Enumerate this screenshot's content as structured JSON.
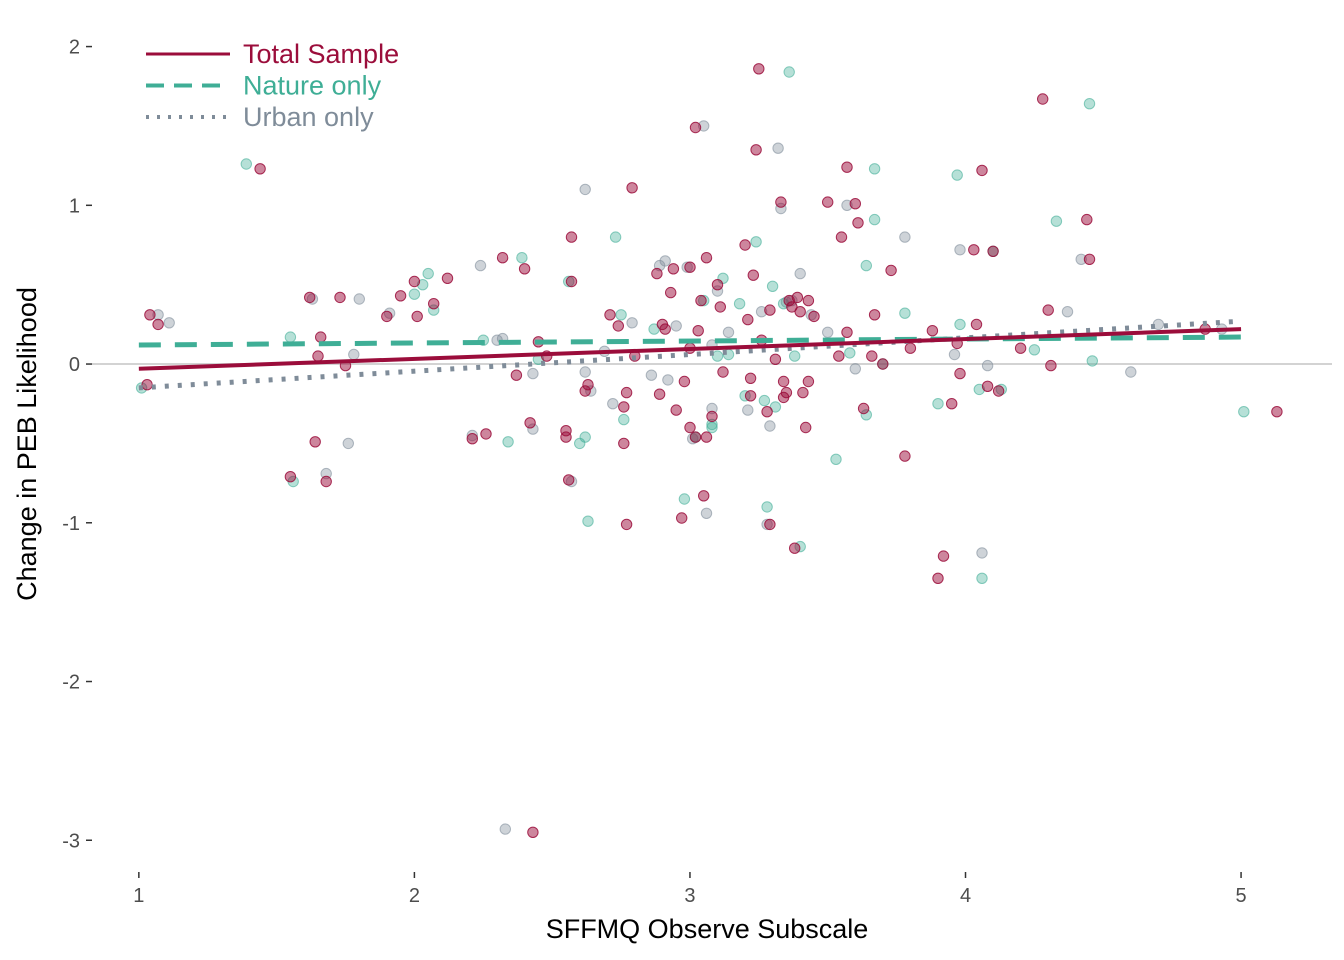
{
  "chart_data": {
    "type": "scatter",
    "title": "",
    "xlabel": "SFFMQ Observe Subscale",
    "ylabel": "Change in PEB Likelihood",
    "xlim": [
      0.83,
      5.33
    ],
    "ylim": [
      -3.2,
      2.18
    ],
    "xticks": [
      1,
      2,
      3,
      4,
      5
    ],
    "yticks": [
      -3,
      -2,
      -1,
      0,
      1,
      2
    ],
    "reference_line_y": 0,
    "grid": false,
    "legend_position": "top-left",
    "colors": {
      "total": "#9b0d3b",
      "nature": "#3fae96",
      "urban": "#7f8c99",
      "reference": "#d3d3d3",
      "axis_text": "#4d4d4d"
    },
    "series": [
      {
        "name": "Total Sample",
        "line_style": "solid",
        "color": "#9b0d3b",
        "fit": [
          [
            1,
            -0.03
          ],
          [
            5,
            0.22
          ]
        ],
        "points": [
          [
            1.03,
            -0.13
          ],
          [
            1.04,
            0.31
          ],
          [
            1.07,
            0.25
          ],
          [
            1.44,
            1.23
          ],
          [
            1.62,
            0.42
          ],
          [
            1.64,
            -0.49
          ],
          [
            1.65,
            0.05
          ],
          [
            1.66,
            0.17
          ],
          [
            1.55,
            -0.71
          ],
          [
            1.68,
            -0.74
          ],
          [
            1.73,
            0.42
          ],
          [
            1.75,
            -0.01
          ],
          [
            1.9,
            0.3
          ],
          [
            1.95,
            0.43
          ],
          [
            2.0,
            0.52
          ],
          [
            2.01,
            0.3
          ],
          [
            2.07,
            0.38
          ],
          [
            2.12,
            0.54
          ],
          [
            2.21,
            -0.47
          ],
          [
            2.26,
            -0.44
          ],
          [
            2.32,
            0.67
          ],
          [
            2.37,
            -0.07
          ],
          [
            2.4,
            0.6
          ],
          [
            2.42,
            -0.37
          ],
          [
            2.43,
            -2.95
          ],
          [
            2.45,
            0.14
          ],
          [
            2.55,
            -0.42
          ],
          [
            2.55,
            -0.46
          ],
          [
            2.56,
            -0.73
          ],
          [
            2.57,
            0.8
          ],
          [
            2.57,
            0.52
          ],
          [
            2.62,
            -0.17
          ],
          [
            2.63,
            -0.13
          ],
          [
            2.71,
            0.31
          ],
          [
            2.74,
            0.24
          ],
          [
            2.76,
            -0.5
          ],
          [
            2.76,
            -0.27
          ],
          [
            2.77,
            -1.01
          ],
          [
            2.77,
            -0.18
          ],
          [
            2.79,
            1.11
          ],
          [
            2.8,
            0.05
          ],
          [
            2.88,
            0.57
          ],
          [
            2.89,
            -0.19
          ],
          [
            2.9,
            0.25
          ],
          [
            2.91,
            0.22
          ],
          [
            2.93,
            0.45
          ],
          [
            2.94,
            0.6
          ],
          [
            2.95,
            -0.29
          ],
          [
            2.97,
            -0.97
          ],
          [
            2.98,
            -0.11
          ],
          [
            3.0,
            0.61
          ],
          [
            3.0,
            -0.4
          ],
          [
            3.02,
            1.49
          ],
          [
            3.02,
            -0.46
          ],
          [
            3.03,
            0.21
          ],
          [
            3.04,
            0.4
          ],
          [
            3.05,
            -0.83
          ],
          [
            3.06,
            0.67
          ],
          [
            3.06,
            -0.46
          ],
          [
            3.08,
            -0.33
          ],
          [
            3.1,
            0.5
          ],
          [
            3.11,
            0.36
          ],
          [
            3.12,
            -0.05
          ],
          [
            3.2,
            0.75
          ],
          [
            3.21,
            0.28
          ],
          [
            3.22,
            -0.09
          ],
          [
            3.22,
            -0.2
          ],
          [
            3.23,
            0.56
          ],
          [
            3.24,
            1.35
          ],
          [
            3.25,
            1.86
          ],
          [
            3.26,
            0.15
          ],
          [
            3.28,
            -0.3
          ],
          [
            3.29,
            -1.01
          ],
          [
            3.29,
            0.34
          ],
          [
            3.31,
            0.03
          ],
          [
            3.33,
            1.02
          ],
          [
            3.34,
            -0.11
          ],
          [
            3.34,
            -0.21
          ],
          [
            3.35,
            -0.18
          ],
          [
            3.36,
            0.4
          ],
          [
            3.37,
            0.36
          ],
          [
            3.38,
            -1.16
          ],
          [
            3.39,
            0.42
          ],
          [
            3.4,
            0.33
          ],
          [
            3.41,
            -0.18
          ],
          [
            3.42,
            -0.4
          ],
          [
            3.43,
            0.4
          ],
          [
            3.43,
            -0.11
          ],
          [
            3.45,
            0.3
          ],
          [
            3.5,
            1.02
          ],
          [
            3.54,
            0.05
          ],
          [
            3.55,
            0.8
          ],
          [
            3.57,
            0.2
          ],
          [
            3.57,
            1.24
          ],
          [
            3.6,
            1.01
          ],
          [
            3.61,
            0.89
          ],
          [
            3.63,
            -0.28
          ],
          [
            3.66,
            0.05
          ],
          [
            3.67,
            0.31
          ],
          [
            3.7,
            0.0
          ],
          [
            3.73,
            0.59
          ],
          [
            3.78,
            -0.58
          ],
          [
            3.88,
            0.21
          ],
          [
            3.9,
            -1.35
          ],
          [
            3.92,
            -1.21
          ],
          [
            3.95,
            -0.25
          ],
          [
            3.97,
            0.13
          ],
          [
            3.98,
            -0.06
          ],
          [
            4.03,
            0.72
          ],
          [
            4.04,
            0.25
          ],
          [
            4.06,
            1.22
          ],
          [
            4.08,
            -0.14
          ],
          [
            4.1,
            0.71
          ],
          [
            4.12,
            -0.17
          ],
          [
            4.28,
            1.67
          ],
          [
            4.3,
            0.34
          ],
          [
            4.31,
            -0.01
          ],
          [
            4.44,
            0.91
          ],
          [
            4.45,
            0.66
          ],
          [
            4.87,
            0.22
          ],
          [
            5.13,
            -0.3
          ],
          [
            3.0,
            0.1
          ],
          [
            2.48,
            0.05
          ],
          [
            3.8,
            0.1
          ],
          [
            4.2,
            0.1
          ]
        ]
      },
      {
        "name": "Nature only",
        "line_style": "dashed",
        "color": "#3fae96",
        "fit": [
          [
            1,
            0.12
          ],
          [
            5,
            0.17
          ]
        ],
        "points": [
          [
            1.01,
            -0.15
          ],
          [
            1.39,
            1.26
          ],
          [
            1.55,
            0.17
          ],
          [
            1.56,
            -0.74
          ],
          [
            2.0,
            0.44
          ],
          [
            2.03,
            0.5
          ],
          [
            2.05,
            0.57
          ],
          [
            2.07,
            0.34
          ],
          [
            2.25,
            0.15
          ],
          [
            2.34,
            -0.49
          ],
          [
            2.39,
            0.67
          ],
          [
            2.56,
            0.52
          ],
          [
            2.6,
            -0.5
          ],
          [
            2.62,
            -0.46
          ],
          [
            2.63,
            -0.99
          ],
          [
            2.73,
            0.8
          ],
          [
            2.75,
            0.31
          ],
          [
            2.76,
            -0.35
          ],
          [
            2.87,
            0.22
          ],
          [
            2.98,
            -0.85
          ],
          [
            3.02,
            -0.46
          ],
          [
            3.05,
            0.4
          ],
          [
            3.08,
            -0.38
          ],
          [
            3.08,
            -0.4
          ],
          [
            3.1,
            0.05
          ],
          [
            3.12,
            0.54
          ],
          [
            3.14,
            0.06
          ],
          [
            3.18,
            0.38
          ],
          [
            3.2,
            -0.2
          ],
          [
            3.24,
            0.77
          ],
          [
            3.27,
            -0.23
          ],
          [
            3.28,
            -0.9
          ],
          [
            3.3,
            0.49
          ],
          [
            3.31,
            -0.27
          ],
          [
            3.34,
            0.38
          ],
          [
            3.36,
            1.84
          ],
          [
            3.38,
            0.05
          ],
          [
            3.4,
            -1.15
          ],
          [
            3.53,
            -0.6
          ],
          [
            3.58,
            0.07
          ],
          [
            3.64,
            0.62
          ],
          [
            3.64,
            -0.32
          ],
          [
            3.67,
            0.91
          ],
          [
            3.67,
            1.23
          ],
          [
            3.78,
            0.32
          ],
          [
            3.9,
            -0.25
          ],
          [
            3.97,
            1.19
          ],
          [
            3.98,
            0.25
          ],
          [
            4.05,
            -0.16
          ],
          [
            4.06,
            -1.35
          ],
          [
            4.1,
            0.71
          ],
          [
            4.13,
            -0.16
          ],
          [
            4.25,
            0.09
          ],
          [
            4.33,
            0.9
          ],
          [
            4.45,
            1.64
          ],
          [
            4.46,
            0.02
          ],
          [
            5.01,
            -0.3
          ],
          [
            3.7,
            0.0
          ],
          [
            2.45,
            0.03
          ]
        ]
      },
      {
        "name": "Urban only",
        "line_style": "dotted",
        "color": "#7f8c99",
        "fit": [
          [
            1,
            -0.15
          ],
          [
            5,
            0.27
          ]
        ],
        "points": [
          [
            1.07,
            0.31
          ],
          [
            1.11,
            0.26
          ],
          [
            1.63,
            0.41
          ],
          [
            1.68,
            -0.69
          ],
          [
            1.76,
            -0.5
          ],
          [
            1.78,
            0.06
          ],
          [
            1.8,
            0.41
          ],
          [
            1.91,
            0.32
          ],
          [
            2.21,
            -0.45
          ],
          [
            2.24,
            0.62
          ],
          [
            2.3,
            0.15
          ],
          [
            2.32,
            0.16
          ],
          [
            2.33,
            -2.93
          ],
          [
            2.43,
            -0.06
          ],
          [
            2.43,
            -0.41
          ],
          [
            2.57,
            -0.74
          ],
          [
            2.62,
            1.1
          ],
          [
            2.64,
            -0.17
          ],
          [
            2.69,
            0.08
          ],
          [
            2.72,
            -0.25
          ],
          [
            2.79,
            0.26
          ],
          [
            2.86,
            -0.07
          ],
          [
            2.89,
            0.62
          ],
          [
            2.91,
            0.65
          ],
          [
            2.92,
            -0.1
          ],
          [
            2.95,
            0.24
          ],
          [
            2.99,
            0.61
          ],
          [
            3.01,
            -0.47
          ],
          [
            3.05,
            1.5
          ],
          [
            3.06,
            -0.94
          ],
          [
            3.08,
            0.12
          ],
          [
            3.08,
            -0.28
          ],
          [
            3.1,
            0.46
          ],
          [
            3.14,
            0.2
          ],
          [
            3.21,
            -0.29
          ],
          [
            3.26,
            0.33
          ],
          [
            3.28,
            -1.01
          ],
          [
            3.29,
            -0.39
          ],
          [
            3.32,
            1.36
          ],
          [
            3.33,
            0.98
          ],
          [
            3.35,
            0.39
          ],
          [
            3.37,
            0.4
          ],
          [
            3.4,
            0.57
          ],
          [
            3.44,
            0.31
          ],
          [
            3.57,
            1.0
          ],
          [
            3.6,
            -0.03
          ],
          [
            3.78,
            0.8
          ],
          [
            3.96,
            0.06
          ],
          [
            3.98,
            0.72
          ],
          [
            4.06,
            -1.19
          ],
          [
            4.08,
            -0.01
          ],
          [
            4.42,
            0.66
          ],
          [
            4.37,
            0.33
          ],
          [
            4.6,
            -0.05
          ],
          [
            4.93,
            0.22
          ],
          [
            3.5,
            0.2
          ],
          [
            2.62,
            -0.05
          ],
          [
            4.7,
            0.25
          ]
        ]
      }
    ]
  }
}
